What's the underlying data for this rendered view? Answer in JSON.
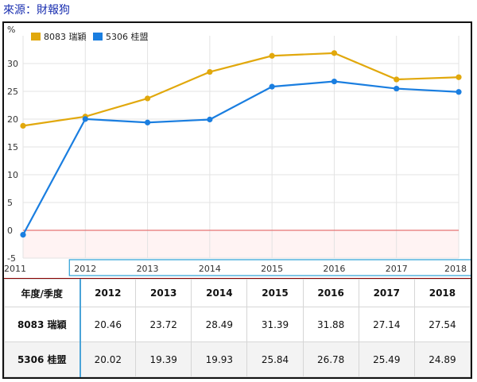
{
  "source_text": "來源：財報狗",
  "chart_data": {
    "type": "line",
    "y_unit_label": "%",
    "x": [
      "2011",
      "2012",
      "2013",
      "2014",
      "2015",
      "2016",
      "2017",
      "2018"
    ],
    "ylim": [
      -5,
      35
    ],
    "yticks": [
      "-5",
      "0",
      "5",
      "10",
      "15",
      "20",
      "25",
      "30"
    ],
    "grid": true,
    "legend_position": "top-left",
    "series": [
      {
        "name": "8083 瑞穎",
        "color": "#e1a80c",
        "values": [
          18.8,
          20.46,
          23.72,
          28.49,
          31.39,
          31.88,
          27.14,
          27.54
        ]
      },
      {
        "name": "5306 桂盟",
        "color": "#1a7ee0",
        "values": [
          -0.8,
          20.02,
          19.39,
          19.93,
          25.84,
          26.78,
          25.49,
          24.89
        ]
      }
    ],
    "zero_line_color": "#e57373"
  },
  "table": {
    "header": [
      "年度/季度",
      "2012",
      "2013",
      "2014",
      "2015",
      "2016",
      "2017",
      "2018"
    ],
    "rows": [
      [
        "8083 瑞穎",
        "20.46",
        "23.72",
        "28.49",
        "31.39",
        "31.88",
        "27.14",
        "27.54"
      ],
      [
        "5306 桂盟",
        "20.02",
        "19.39",
        "19.93",
        "25.84",
        "26.78",
        "25.49",
        "24.89"
      ]
    ]
  }
}
